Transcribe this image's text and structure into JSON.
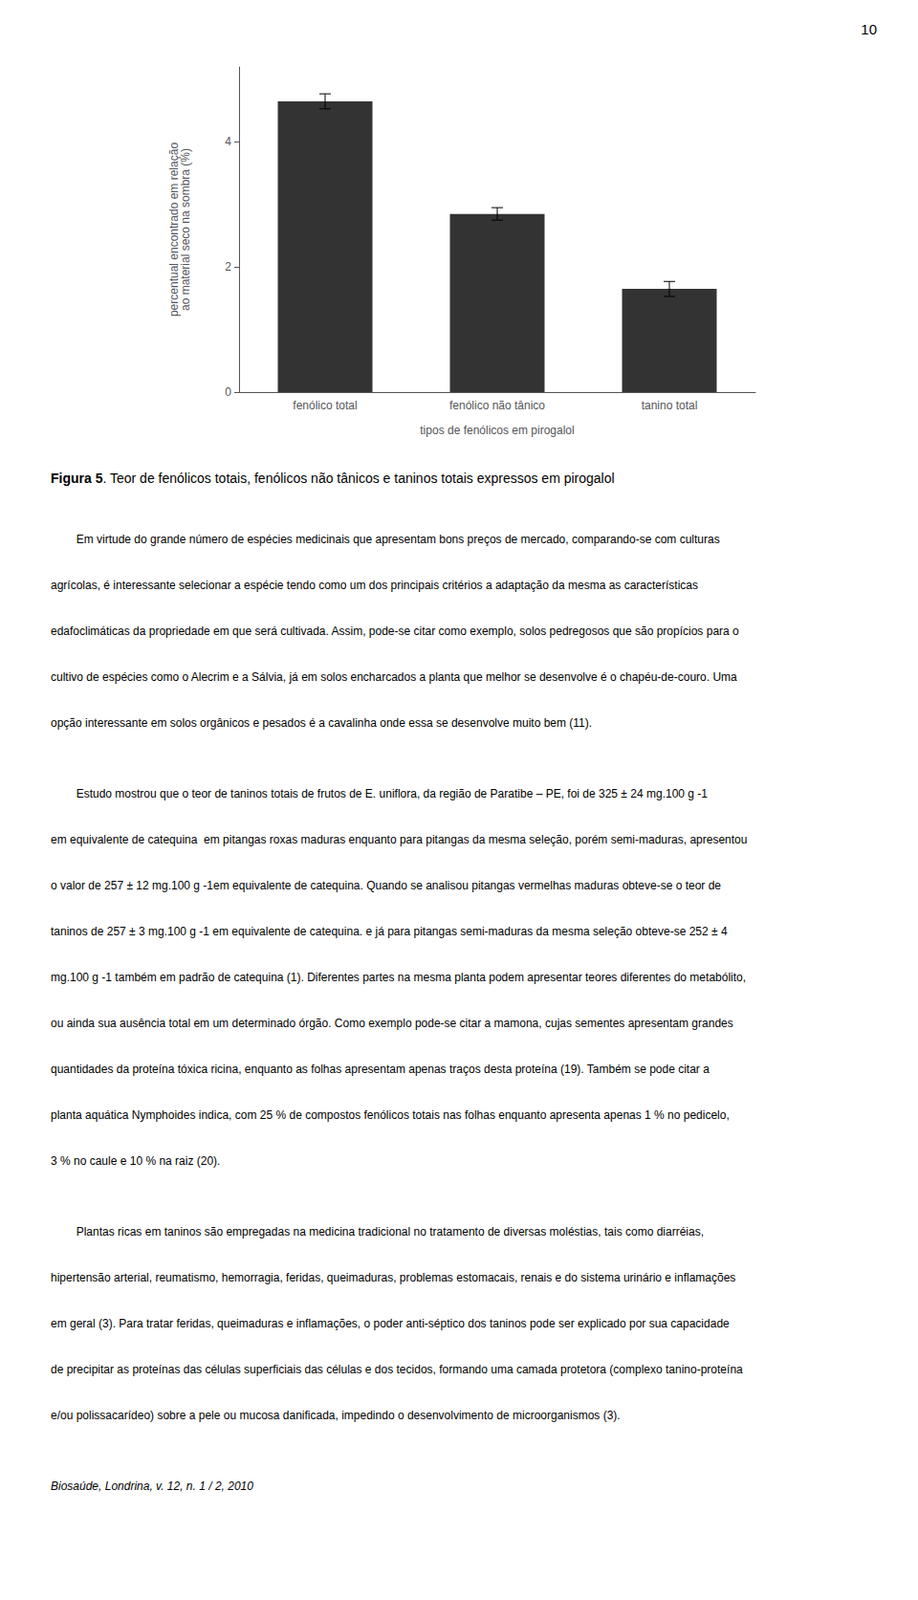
{
  "page_number": "10",
  "chart_data": {
    "type": "bar",
    "categories": [
      "fenólico total",
      "fenólico não tânico",
      "tanino total"
    ],
    "values": [
      4.65,
      2.85,
      1.65
    ],
    "errors": [
      0.12,
      0.1,
      0.12
    ],
    "color": "#333333",
    "xlabel": "tipos de fenólicos em pirogalol",
    "ylabel": "percentual encontrado em relação\nao material seco na sombra (%)",
    "ylim": [
      0,
      5.2
    ],
    "yticks": [
      0,
      2,
      4
    ],
    "grid": false
  },
  "caption": {
    "label": "Figura 5",
    "text": ". Teor de fenólicos totais, fenólicos não tânicos e taninos totais expressos em pirogalol"
  },
  "paragraphs": [
    [
      "        Em virtude do grande número de espécies medicinais que apresentam bons preços de mercado, comparando-se com culturas",
      "agrícolas, é interessante selecionar a espécie tendo como um dos principais critérios a adaptação da mesma as características",
      "edafoclimáticas da propriedade em que será cultivada. Assim, pode-se citar como exemplo, solos pedregosos que são propícios para o",
      "cultivo de espécies como o Alecrim e a Sálvia, já em solos encharcados a planta que melhor se desenvolve é o chapéu-de-couro. Uma",
      "opção interessante em solos orgânicos e pesados é a cavalinha onde essa se desenvolve muito bem (11)."
    ],
    [
      "        Estudo mostrou que o teor de taninos totais de frutos de E. uniflora, da região de Paratibe – PE, foi de 325 ± 24 mg.100 g -1",
      "em equivalente de catequina  em pitangas roxas maduras enquanto para pitangas da mesma seleção, porém semi-maduras, apresentou",
      "o valor de 257 ± 12 mg.100 g -1em equivalente de catequina. Quando se analisou pitangas vermelhas maduras obteve-se o teor de",
      "taninos de 257 ± 3 mg.100 g -1 em equivalente de catequina. e já para pitangas semi-maduras da mesma seleção obteve-se 252 ± 4",
      "mg.100 g -1 também em padrão de catequina (1). Diferentes partes na mesma planta podem apresentar teores diferentes do metabólito,",
      "ou ainda sua ausência total em um determinado órgão. Como exemplo pode-se citar a mamona, cujas sementes apresentam grandes",
      "quantidades da proteína tóxica ricina, enquanto as folhas apresentam apenas traços desta proteína (19). Também se pode citar a",
      "planta aquática Nymphoides indica, com 25 % de compostos fenólicos totais nas folhas enquanto apresenta apenas 1 % no pedicelo,",
      "3 % no caule e 10 % na raiz (20)."
    ],
    [
      "        Plantas ricas em taninos são empregadas na medicina tradicional no tratamento de diversas moléstias, tais como diarréias,",
      "hipertensão arterial, reumatismo, hemorragia, feridas, queimaduras, problemas estomacais, renais e do sistema urinário e inflamações",
      "em geral (3). Para tratar feridas, queimaduras e inflamações, o poder anti-séptico dos taninos pode ser explicado por sua capacidade",
      "de precipitar as proteínas das células superficiais das células e dos tecidos, formando uma camada protetora (complexo tanino-proteína",
      "e/ou polissacarídeo) sobre a pele ou mucosa danificada, impedindo o desenvolvimento de microorganismos (3)."
    ]
  ],
  "footer": "Biosaúde, Londrina, v. 12, n. 1 / 2, 2010"
}
